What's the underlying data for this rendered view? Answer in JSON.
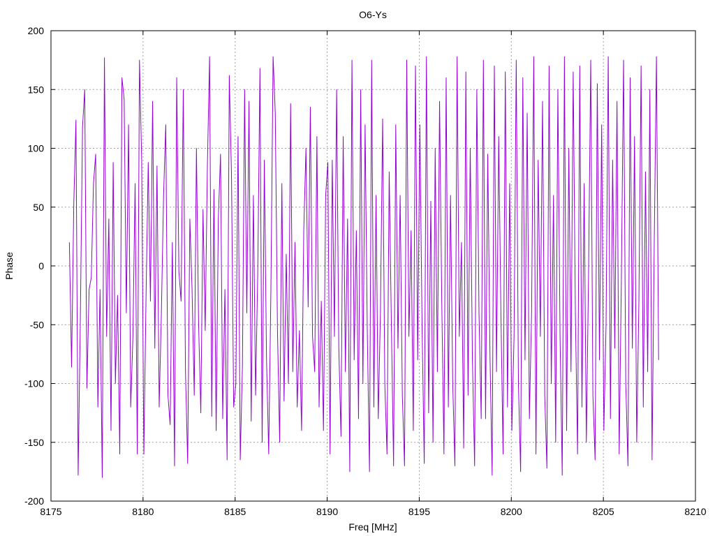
{
  "chart_data": {
    "type": "line",
    "title": "O6-Ys",
    "xlabel": "Freq [MHz]",
    "ylabel": "Phase",
    "xlim": [
      8175,
      8210
    ],
    "ylim": [
      -200,
      200
    ],
    "xticks": [
      8175,
      8180,
      8185,
      8190,
      8195,
      8200,
      8205,
      8210
    ],
    "yticks": [
      -200,
      -150,
      -100,
      -50,
      0,
      50,
      100,
      150,
      200
    ],
    "grid": true,
    "legend": "none",
    "series_color": "#9400d3",
    "series": [
      {
        "x_start": 8176.0,
        "x_end": 8208.0,
        "values": [
          20,
          -86,
          52,
          124,
          -178,
          -45,
          118,
          150,
          -104,
          -20,
          -10,
          70,
          95,
          -120,
          -20,
          -180,
          177,
          -60,
          40,
          -140,
          88,
          -100,
          -25,
          -160,
          160,
          142,
          -40,
          120,
          -120,
          -60,
          70,
          -160,
          175,
          90,
          -160,
          -25,
          88,
          -30,
          140,
          -70,
          85,
          -120,
          -40,
          60,
          120,
          -110,
          -135,
          20,
          -170,
          160,
          -5,
          -30,
          150,
          -90,
          -168,
          40,
          -20,
          -110,
          100,
          -50,
          -125,
          48,
          -55,
          85,
          178,
          -128,
          65,
          -140,
          40,
          95,
          -130,
          -20,
          -165,
          162,
          78,
          -120,
          -100,
          110,
          -165,
          -85,
          150,
          -40,
          140,
          -132,
          60,
          -110,
          -5,
          168,
          -150,
          90,
          -80,
          -160,
          -20,
          178,
          130,
          -55,
          -150,
          70,
          -115,
          10,
          -100,
          138,
          -90,
          20,
          -120,
          -55,
          -140,
          30,
          100,
          -35,
          135,
          -60,
          -90,
          110,
          -120,
          -30,
          -140,
          60,
          88,
          -160,
          90,
          -60,
          150,
          -70,
          -145,
          110,
          -90,
          40,
          -175,
          175,
          -80,
          30,
          -130,
          150,
          -100,
          120,
          -55,
          -175,
          175,
          -120,
          60,
          -130,
          -40,
          125,
          -100,
          -160,
          80,
          -50,
          -170,
          120,
          -70,
          60,
          -110,
          -170,
          175,
          -60,
          30,
          -140,
          170,
          -80,
          120,
          -50,
          -168,
          178,
          -125,
          55,
          -150,
          100,
          -90,
          140,
          -30,
          -160,
          160,
          -120,
          60,
          -100,
          -170,
          178,
          -60,
          20,
          -155,
          165,
          -110,
          100,
          -80,
          -170,
          150,
          -40,
          -130,
          175,
          -130,
          95,
          -75,
          -178,
          170,
          -90,
          110,
          -40,
          -160,
          165,
          -120,
          70,
          -140,
          -60,
          175,
          -100,
          -175,
          160,
          -80,
          130,
          -130,
          -40,
          178,
          -160,
          90,
          -60,
          140,
          -110,
          -172,
          170,
          -100,
          60,
          -150,
          150,
          -60,
          -178,
          178,
          -140,
          100,
          -90,
          165,
          -40,
          -160,
          170,
          -120,
          70,
          -150,
          -10,
          175,
          -110,
          -165,
          155,
          -80,
          120,
          -140,
          -50,
          178,
          -130,
          90,
          -70,
          140,
          -160,
          -10,
          175,
          -100,
          -170,
          160,
          -70,
          110,
          -150,
          -30,
          170,
          -120,
          80,
          -90,
          150,
          -165,
          20,
          178,
          -80
        ]
      }
    ]
  }
}
